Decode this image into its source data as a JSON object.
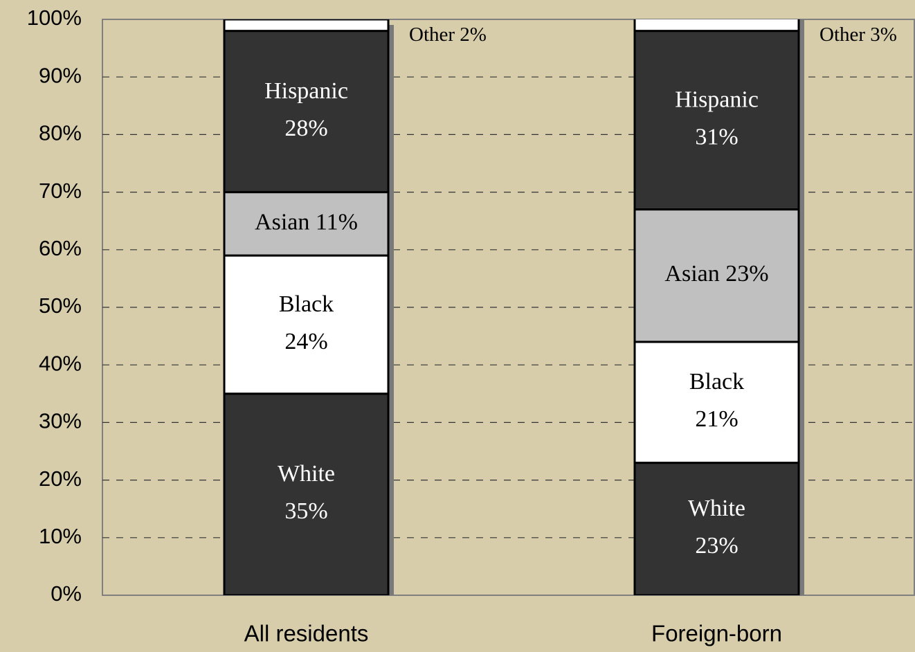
{
  "chart_data": {
    "type": "stacked_bar",
    "categories": [
      "All residents",
      "Foreign-born"
    ],
    "series": [
      {
        "name": "White",
        "color": "#333333",
        "values": [
          35,
          23
        ],
        "value_labels": [
          "35%",
          "23%"
        ]
      },
      {
        "name": "Black",
        "color": "#ffffff",
        "values": [
          24,
          21
        ],
        "value_labels": [
          "24%",
          "21%"
        ]
      },
      {
        "name": "Asian",
        "color": "#c0c0c0",
        "values": [
          11,
          23
        ],
        "value_labels": [
          "11%",
          "23%"
        ]
      },
      {
        "name": "Hispanic",
        "color": "#333333",
        "values": [
          28,
          31
        ],
        "value_labels": [
          "28%",
          "31%"
        ]
      },
      {
        "name": "Other",
        "color": "#ffffff",
        "values": [
          2,
          3
        ],
        "value_labels": [
          "2%",
          "3%"
        ]
      }
    ],
    "ylim": [
      0,
      100
    ],
    "yticks": [
      {
        "value": 0,
        "label": "0%"
      },
      {
        "value": 10,
        "label": "10%"
      },
      {
        "value": 20,
        "label": "20%"
      },
      {
        "value": 30,
        "label": "30%"
      },
      {
        "value": 40,
        "label": "40%"
      },
      {
        "value": 50,
        "label": "50%"
      },
      {
        "value": 60,
        "label": "60%"
      },
      {
        "value": 70,
        "label": "70%"
      },
      {
        "value": 80,
        "label": "80%"
      },
      {
        "value": 90,
        "label": "90%"
      },
      {
        "value": 100,
        "label": "100%"
      }
    ],
    "grid": true
  }
}
